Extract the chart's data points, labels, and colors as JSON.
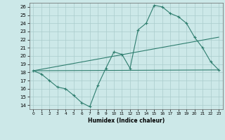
{
  "xlabel": "Humidex (Indice chaleur)",
  "bg_color": "#cce8e8",
  "line_color": "#2e7d6e",
  "grid_color": "#aacccc",
  "xlim": [
    -0.5,
    23.5
  ],
  "ylim": [
    13.5,
    26.5
  ],
  "xticks": [
    0,
    1,
    2,
    3,
    4,
    5,
    6,
    7,
    8,
    9,
    10,
    11,
    12,
    13,
    14,
    15,
    16,
    17,
    18,
    19,
    20,
    21,
    22,
    23
  ],
  "yticks": [
    14,
    15,
    16,
    17,
    18,
    19,
    20,
    21,
    22,
    23,
    24,
    25,
    26
  ],
  "line1_x": [
    0,
    1,
    2,
    3,
    4,
    5,
    6,
    7,
    8,
    9,
    10,
    11,
    12,
    13,
    14,
    15,
    16,
    17,
    18,
    19,
    20,
    21,
    22,
    23
  ],
  "line1_y": [
    18.2,
    17.8,
    17.0,
    16.2,
    16.0,
    15.2,
    14.3,
    13.8,
    16.4,
    18.5,
    20.5,
    20.2,
    18.5,
    23.2,
    24.0,
    26.2,
    26.0,
    25.2,
    24.8,
    24.0,
    22.3,
    21.0,
    19.3,
    18.3
  ],
  "line2_x": [
    0,
    23
  ],
  "line2_y": [
    18.2,
    18.3
  ],
  "line3_x": [
    0,
    23
  ],
  "line3_y": [
    18.2,
    22.3
  ]
}
